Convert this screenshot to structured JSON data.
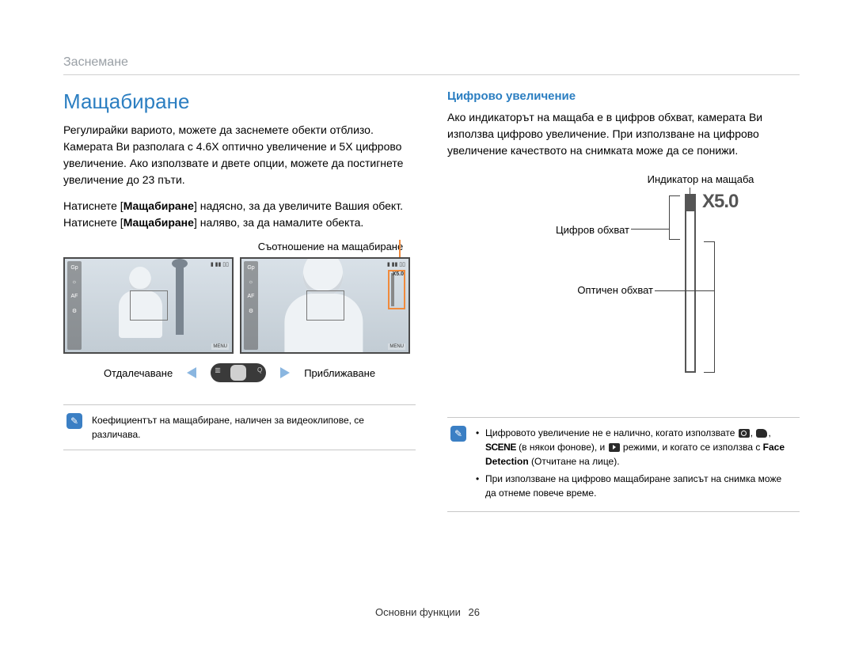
{
  "breadcrumb": "Заснемане",
  "title": "Мащабиране",
  "left": {
    "p1": "Регулирайки вариото, можете да заснемете обекти отблизо. Камерата Ви разполага с 4.6X оптично увеличение и 5X цифрово увеличение. Ако използвате и двете опции, можете да постигнете увеличение до 23 пъти.",
    "p2a": "Натиснете [",
    "p2b": "Мащабиране",
    "p2c": "] надясно, за да увеличите Вашия обект. Натиснете [",
    "p2d": "Мащабиране",
    "p2e": "] наляво, за да намалите обекта.",
    "ratio_label": "Съотношение на мащабиране",
    "zoom_out": "Отдалечаване",
    "zoom_in": "Приближаване",
    "x_label": "X5.0",
    "note": "Коефициентът на мащабиране, наличен за видеоклипове, се различава."
  },
  "right": {
    "h2": "Цифрово увеличение",
    "p1": "Ако индикаторът на мащаба е в цифров обхват, камерата Ви използва цифрово увеличение. При използване на цифрово увеличение качеството на снимката може да се понижи.",
    "indicator_label": "Индикатор на мащаба",
    "digital_range": "Цифров обхват",
    "optical_range": "Оптичен обхват",
    "x5": "X5.0",
    "note_li1_a": "Цифровото увеличение не е налично, когато използвате ",
    "note_li1_b": " (в някои фонове), и ",
    "note_li1_c": " режими, и когато се използва с ",
    "note_li1_face": "Face Detection",
    "note_li1_d": " (Отчитане на лице).",
    "scene_word": "SCENE",
    "note_li2": "При използване на цифрово мащабиране записът на снимка може да отнеме повече време."
  },
  "footer": {
    "section": "Основни функции",
    "page": "26"
  },
  "colors": {
    "accent_blue": "#2b7ec1",
    "highlight_orange": "#f08a3c",
    "note_icon_bg": "#3b7fc4",
    "arrow_blue": "#8ab6e0",
    "breadcrumb_gray": "#9aa0a6",
    "bar_dark": "#555555"
  }
}
